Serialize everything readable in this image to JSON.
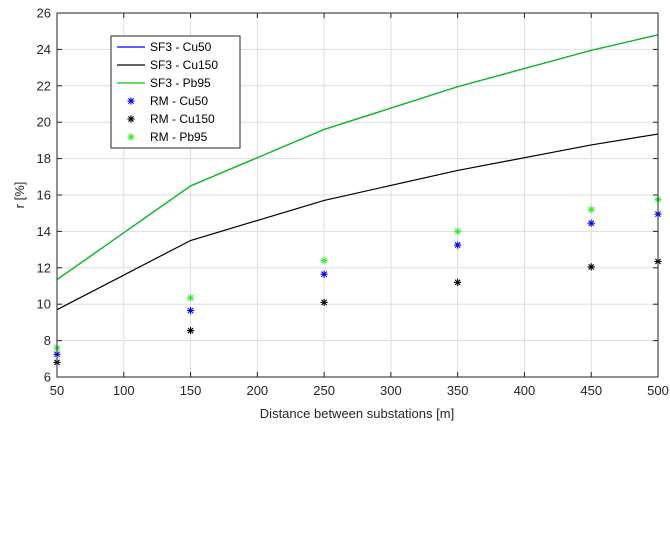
{
  "chart_data": {
    "type": "line",
    "xlabel": "Distance between substations [m]",
    "ylabel": "r [%]",
    "xlim": [
      50,
      500
    ],
    "ylim": [
      6,
      26
    ],
    "xticks": [
      50,
      100,
      150,
      200,
      250,
      300,
      350,
      400,
      450,
      500
    ],
    "yticks": [
      6,
      8,
      10,
      12,
      14,
      16,
      18,
      20,
      22,
      24,
      26
    ],
    "grid": true,
    "legend_position": "top-left",
    "x": [
      50,
      150,
      250,
      350,
      450,
      500
    ],
    "series": [
      {
        "name": "SF3 - Cu50",
        "kind": "line",
        "color": "#0000ff",
        "values": [
          11.35,
          16.5,
          19.6,
          21.95,
          23.95,
          24.8
        ]
      },
      {
        "name": "SF3 - Cu150",
        "kind": "line",
        "color": "#000000",
        "values": [
          9.7,
          13.5,
          15.7,
          17.35,
          18.75,
          19.35
        ]
      },
      {
        "name": "SF3 - Pb95",
        "kind": "line",
        "color": "#00cc00",
        "values": [
          11.35,
          16.5,
          19.6,
          21.95,
          23.95,
          24.8
        ]
      },
      {
        "name": "RM - Cu50",
        "kind": "marker",
        "color": "#0000ff",
        "values": [
          7.25,
          9.65,
          11.65,
          13.25,
          14.45,
          14.95
        ]
      },
      {
        "name": "RM - Cu150",
        "kind": "marker",
        "color": "#000000",
        "values": [
          6.8,
          8.55,
          10.1,
          11.2,
          12.05,
          12.35
        ]
      },
      {
        "name": "RM - Pb95",
        "kind": "marker",
        "color": "#33ee33",
        "values": [
          7.6,
          10.35,
          12.4,
          14.0,
          15.2,
          15.75
        ]
      }
    ]
  }
}
